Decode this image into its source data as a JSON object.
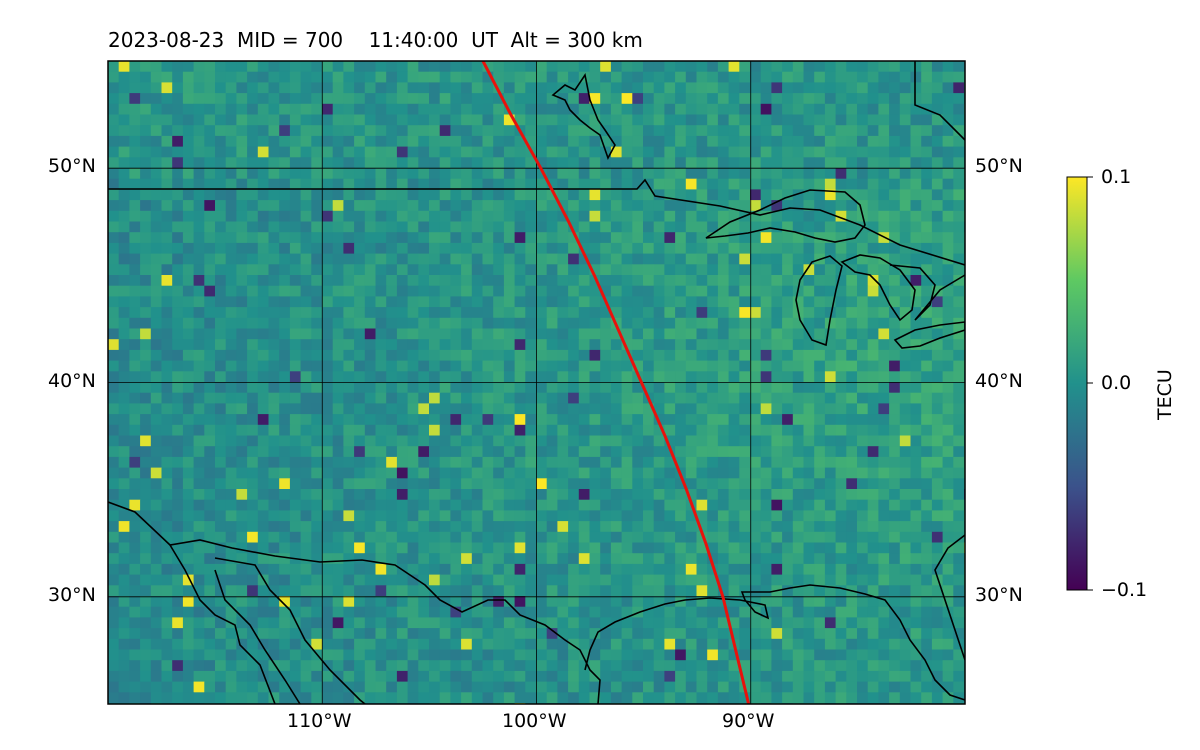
{
  "title": "2023-08-23  MID = 700    11:40:00  UT  Alt = 300 km",
  "map": {
    "lon_range": [
      -120,
      -80
    ],
    "lat_range": [
      25,
      55
    ],
    "lat_gridlines": [
      30,
      40,
      50
    ],
    "lon_gridlines": [
      -110,
      -100,
      -90
    ],
    "lat_labels": [
      "30°N",
      "40°N",
      "50°N"
    ],
    "lon_labels": [
      "110°W",
      "100°W",
      "90°W"
    ],
    "grid": true,
    "track_color": "#e8120c",
    "track_lonlat": [
      [
        -102.5,
        55
      ],
      [
        -101.2,
        52.5
      ],
      [
        -99.8,
        50
      ],
      [
        -98.5,
        47.5
      ],
      [
        -97.3,
        45
      ],
      [
        -96.2,
        42.5
      ],
      [
        -95.1,
        40
      ],
      [
        -94.0,
        37.5
      ],
      [
        -93.0,
        35
      ],
      [
        -92.1,
        32.5
      ],
      [
        -91.3,
        30
      ],
      [
        -90.1,
        25
      ]
    ]
  },
  "colorbar": {
    "label": "TECU",
    "min": -0.1,
    "max": 0.1,
    "ticks": [
      "0.1",
      "0.0",
      "−0.1"
    ],
    "colormap": [
      "#440154",
      "#3b528b",
      "#21918c",
      "#5ec962",
      "#fde725"
    ]
  }
}
